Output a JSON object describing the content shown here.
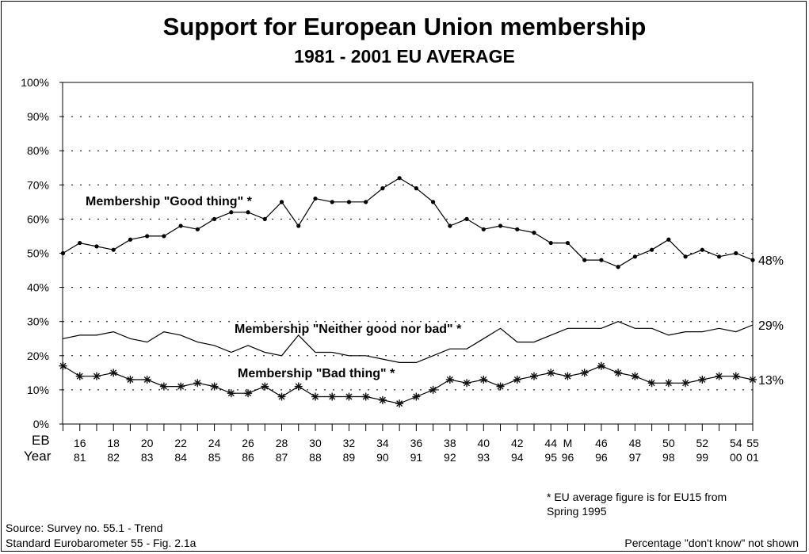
{
  "title": "Support for European Union membership",
  "subtitle": "1981 - 2001 EU AVERAGE",
  "chart_data": {
    "type": "line",
    "ylim": [
      0,
      100
    ],
    "y_ticks": [
      "0%",
      "10%",
      "20%",
      "30%",
      "40%",
      "50%",
      "60%",
      "70%",
      "80%",
      "90%",
      "100%"
    ],
    "grid": "dotted horizontal",
    "row_labels": {
      "eb": "EB",
      "year": "Year"
    },
    "x_labels": [
      {
        "i": 1,
        "eb": "16",
        "year": "81"
      },
      {
        "i": 3,
        "eb": "18",
        "year": "82"
      },
      {
        "i": 5,
        "eb": "20",
        "year": "83"
      },
      {
        "i": 7,
        "eb": "22",
        "year": "84"
      },
      {
        "i": 9,
        "eb": "24",
        "year": "85"
      },
      {
        "i": 11,
        "eb": "26",
        "year": "86"
      },
      {
        "i": 13,
        "eb": "28",
        "year": "87"
      },
      {
        "i": 15,
        "eb": "30",
        "year": "88"
      },
      {
        "i": 17,
        "eb": "32",
        "year": "89"
      },
      {
        "i": 19,
        "eb": "34",
        "year": "90"
      },
      {
        "i": 21,
        "eb": "36",
        "year": "91"
      },
      {
        "i": 23,
        "eb": "38",
        "year": "92"
      },
      {
        "i": 25,
        "eb": "40",
        "year": "93"
      },
      {
        "i": 27,
        "eb": "42",
        "year": "94"
      },
      {
        "i": 29,
        "eb": "44",
        "year": "95"
      },
      {
        "i": 30,
        "eb": "M",
        "year": "96"
      },
      {
        "i": 32,
        "eb": "46",
        "year": "96"
      },
      {
        "i": 34,
        "eb": "48",
        "year": "97"
      },
      {
        "i": 36,
        "eb": "50",
        "year": "98"
      },
      {
        "i": 38,
        "eb": "52",
        "year": "99"
      },
      {
        "i": 40,
        "eb": "54",
        "year": "00"
      },
      {
        "i": 41,
        "eb": "55",
        "year": "01"
      }
    ],
    "series": [
      {
        "name": "Membership \"Good thing\" *",
        "marker": "dot",
        "end_label": "48%",
        "values": [
          50,
          53,
          52,
          51,
          54,
          55,
          55,
          58,
          57,
          60,
          62,
          62,
          60,
          65,
          58,
          66,
          65,
          65,
          65,
          69,
          72,
          69,
          65,
          58,
          60,
          57,
          58,
          57,
          56,
          53,
          53,
          48,
          48,
          46,
          49,
          51,
          54,
          49,
          51,
          49,
          50,
          48
        ]
      },
      {
        "name": "Membership \"Neither good nor bad\" *",
        "marker": "none",
        "end_label": "29%",
        "values": [
          25,
          26,
          26,
          27,
          25,
          24,
          27,
          26,
          24,
          23,
          21,
          23,
          21,
          20,
          26,
          21,
          21,
          20,
          20,
          19,
          18,
          18,
          20,
          22,
          22,
          25,
          28,
          24,
          24,
          26,
          28,
          28,
          28,
          30,
          28,
          28,
          26,
          27,
          27,
          28,
          27,
          29
        ]
      },
      {
        "name": "Membership \"Bad thing\" *",
        "marker": "star",
        "end_label": "13%",
        "values": [
          17,
          14,
          14,
          15,
          13,
          13,
          11,
          11,
          12,
          11,
          9,
          9,
          11,
          8,
          11,
          8,
          8,
          8,
          8,
          7,
          6,
          8,
          10,
          13,
          12,
          13,
          11,
          13,
          14,
          15,
          14,
          15,
          17,
          15,
          14,
          12,
          12,
          12,
          13,
          14,
          14,
          13
        ]
      }
    ]
  },
  "footnote": "* EU average figure is for EU15 from Spring 1995",
  "source_line1": "Source:  Survey no. 55.1 - Trend",
  "source_line2": "Standard Eurobarometer 55 - Fig. 2.1a",
  "note_right": "Percentage \"don't know\" not shown"
}
